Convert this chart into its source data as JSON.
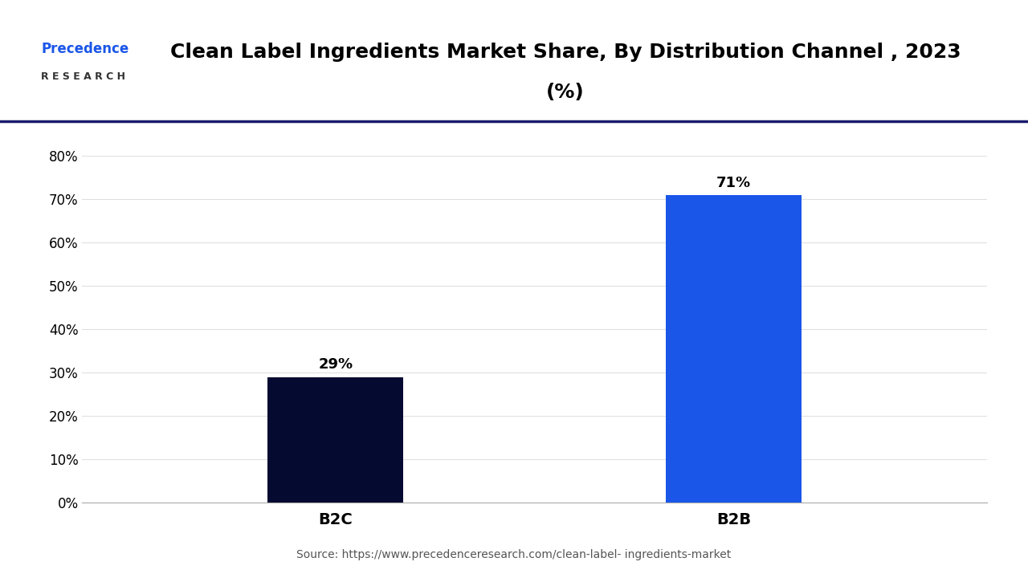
{
  "title_line1": "Clean Label Ingredients Market Share, By Distribution Channel , 2023",
  "title_line2": "(%)",
  "categories": [
    "B2C",
    "B2B"
  ],
  "values": [
    29,
    71
  ],
  "bar_colors": [
    "#050A30",
    "#1A56E8"
  ],
  "value_labels": [
    "29%",
    "71%"
  ],
  "ylim": [
    0,
    80
  ],
  "yticks": [
    0,
    10,
    20,
    30,
    40,
    50,
    60,
    70,
    80
  ],
  "ytick_labels": [
    "0%",
    "10%",
    "20%",
    "30%",
    "40%",
    "50%",
    "60%",
    "70%",
    "80%"
  ],
  "source_text": "Source: https://www.precedenceresearch.com/clean-label- ingredients-market",
  "background_color": "#ffffff",
  "grid_color": "#e0e0e0",
  "bar_width": 0.15,
  "x_positions": [
    0.28,
    0.72
  ],
  "xlim": [
    0,
    1
  ],
  "title_fontsize": 18,
  "label_fontsize": 14,
  "tick_fontsize": 12,
  "annotation_fontsize": 13,
  "separator_color": "#1a1a6e",
  "logo_color_precedence": "#1A56E8",
  "logo_color_research": "#555555"
}
